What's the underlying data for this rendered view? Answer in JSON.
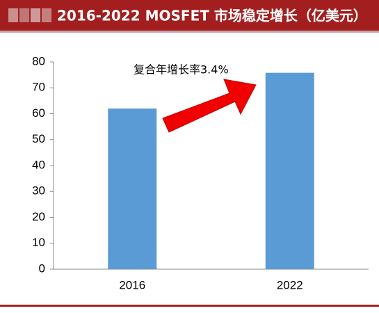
{
  "chart_data": {
    "type": "bar",
    "title": "2016-2022 MOSFET 市场稳定增长（亿美元）",
    "annotation": "复合年增长率3.4%",
    "categories": [
      "2016",
      "2022"
    ],
    "values": [
      62,
      75.8
    ],
    "color": "#5b9bd5",
    "ylim": [
      0,
      80
    ],
    "yticks": [
      0,
      10,
      20,
      30,
      40,
      50,
      60,
      70,
      80
    ],
    "grid": false
  }
}
